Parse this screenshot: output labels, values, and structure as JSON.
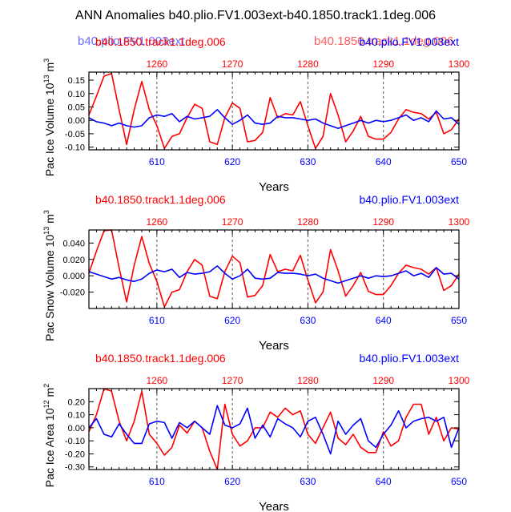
{
  "title": "ANN Anomalies b40.plio.FV1.003ext-b40.1850.track1.1deg.006",
  "overlay": {
    "blue_label": "b40.plio.FV1.003ext",
    "red_label": "b40.1850.track1.1deg.006"
  },
  "colors": {
    "red": "#ff0000",
    "blue": "#0000ff",
    "black": "#000000",
    "grid": "#555555"
  },
  "chart_data": [
    {
      "type": "line",
      "ylabel": "Pac Ice Volume 10",
      "ylabel_exp": "13",
      "ylabel_unit": " m",
      "ylabel_unit_exp": "3",
      "xlabel": "Years",
      "top_left_label": "b40.1850.track1.1deg.006",
      "top_right_label": "b40.plio.FV1.003ext",
      "xlim": [
        601,
        650
      ],
      "x_ticks": [
        610,
        620,
        630,
        640,
        650
      ],
      "x_tick_labels": [
        "610",
        "620",
        "630",
        "640",
        "650"
      ],
      "top_ticks": [
        1260,
        1270,
        1280,
        1290,
        1300
      ],
      "top_tick_labels": [
        "1260",
        "1270",
        "1280",
        "1290",
        "1300"
      ],
      "ylim": [
        -0.11,
        0.18
      ],
      "y_ticks": [
        0.15,
        0.1,
        0.05,
        0.0,
        -0.05,
        -0.1
      ],
      "y_tick_labels": [
        "0.15",
        "0.10",
        "0.05",
        "0.00",
        "-0.05",
        "-0.10"
      ],
      "vlines": [
        610,
        620,
        630,
        640
      ],
      "series": [
        {
          "color": "red",
          "x": [
            601,
            602,
            603,
            604,
            605,
            606,
            607,
            608,
            609,
            610,
            611,
            612,
            613,
            614,
            615,
            616,
            617,
            618,
            619,
            620,
            621,
            622,
            623,
            624,
            625,
            626,
            627,
            628,
            629,
            630,
            631,
            632,
            633,
            634,
            635,
            636,
            637,
            638,
            639,
            640,
            641,
            642,
            643,
            644,
            645,
            646,
            647,
            648,
            649,
            650
          ],
          "values": [
            0.02,
            0.09,
            0.165,
            0.175,
            0.04,
            -0.09,
            0.04,
            0.145,
            0.04,
            -0.02,
            -0.105,
            -0.06,
            -0.05,
            0.01,
            0.06,
            0.045,
            -0.08,
            -0.09,
            0.01,
            0.065,
            0.045,
            -0.08,
            -0.075,
            -0.045,
            0.085,
            0.01,
            0.025,
            0.02,
            0.07,
            -0.02,
            -0.105,
            -0.06,
            0.1,
            0.02,
            -0.08,
            -0.04,
            0.015,
            -0.06,
            -0.07,
            -0.07,
            -0.045,
            0.005,
            0.04,
            0.03,
            0.025,
            0.005,
            0.03,
            -0.05,
            -0.035,
            0.005
          ]
        },
        {
          "color": "blue",
          "x": [
            601,
            602,
            603,
            604,
            605,
            606,
            607,
            608,
            609,
            610,
            611,
            612,
            613,
            614,
            615,
            616,
            617,
            618,
            619,
            620,
            621,
            622,
            623,
            624,
            625,
            626,
            627,
            628,
            629,
            630,
            631,
            632,
            633,
            634,
            635,
            636,
            637,
            638,
            639,
            640,
            641,
            642,
            643,
            644,
            645,
            646,
            647,
            648,
            649,
            650
          ],
          "values": [
            0.01,
            -0.005,
            -0.01,
            -0.02,
            -0.01,
            -0.02,
            -0.025,
            -0.02,
            0.01,
            0.02,
            0.015,
            0.025,
            -0.005,
            0.015,
            0.005,
            0.01,
            0.015,
            0.04,
            0.01,
            -0.015,
            0.0,
            0.02,
            -0.01,
            -0.015,
            -0.01,
            0.015,
            0.01,
            0.01,
            0.005,
            0.0,
            0.005,
            -0.01,
            -0.02,
            -0.03,
            -0.02,
            -0.01,
            0.0,
            -0.01,
            0.0,
            -0.005,
            0.0,
            0.01,
            0.02,
            0.0,
            0.01,
            -0.005,
            0.035,
            0.005,
            0.01,
            -0.015
          ]
        }
      ]
    },
    {
      "type": "line",
      "ylabel": "Pac Snow Volume 10",
      "ylabel_exp": "13",
      "ylabel_unit": " m",
      "ylabel_unit_exp": "3",
      "xlabel": "Years",
      "top_left_label": "b40.1850.track1.1deg.006",
      "top_right_label": "b40.plio.FV1.003ext",
      "xlim": [
        601,
        650
      ],
      "x_ticks": [
        610,
        620,
        630,
        640,
        650
      ],
      "x_tick_labels": [
        "610",
        "620",
        "630",
        "640",
        "650"
      ],
      "top_ticks": [
        1260,
        1270,
        1280,
        1290,
        1300
      ],
      "top_tick_labels": [
        "1260",
        "1270",
        "1280",
        "1290",
        "1300"
      ],
      "ylim": [
        -0.04,
        0.056
      ],
      "y_ticks": [
        0.04,
        0.02,
        0.0,
        -0.02
      ],
      "y_tick_labels": [
        "0.040",
        "0.020",
        "0.000",
        "-0.020"
      ],
      "vlines": [
        610,
        620,
        630,
        640
      ],
      "series": [
        {
          "color": "red",
          "x": [
            601,
            602,
            603,
            604,
            605,
            606,
            607,
            608,
            609,
            610,
            611,
            612,
            613,
            614,
            615,
            616,
            617,
            618,
            619,
            620,
            621,
            622,
            623,
            624,
            625,
            626,
            627,
            628,
            629,
            630,
            631,
            632,
            633,
            634,
            635,
            636,
            637,
            638,
            639,
            640,
            641,
            642,
            643,
            644,
            645,
            646,
            647,
            648,
            649,
            650
          ],
          "values": [
            0.003,
            0.03,
            0.055,
            0.056,
            0.01,
            -0.032,
            0.013,
            0.048,
            0.015,
            -0.007,
            -0.038,
            -0.02,
            -0.017,
            0.005,
            0.02,
            0.013,
            -0.025,
            -0.028,
            0.005,
            0.024,
            0.016,
            -0.026,
            -0.024,
            -0.012,
            0.026,
            0.005,
            0.008,
            0.006,
            0.025,
            -0.005,
            -0.033,
            -0.02,
            0.032,
            0.006,
            -0.025,
            -0.012,
            0.004,
            -0.019,
            -0.023,
            -0.023,
            -0.012,
            0.003,
            0.013,
            0.01,
            0.008,
            0.002,
            0.01,
            -0.018,
            -0.012,
            0.002
          ]
        },
        {
          "color": "blue",
          "x": [
            601,
            602,
            603,
            604,
            605,
            606,
            607,
            608,
            609,
            610,
            611,
            612,
            613,
            614,
            615,
            616,
            617,
            618,
            619,
            620,
            621,
            622,
            623,
            624,
            625,
            626,
            627,
            628,
            629,
            630,
            631,
            632,
            633,
            634,
            635,
            636,
            637,
            638,
            639,
            640,
            641,
            642,
            643,
            644,
            645,
            646,
            647,
            648,
            649,
            650
          ],
          "values": [
            0.005,
            0.002,
            -0.001,
            -0.004,
            -0.002,
            -0.005,
            -0.007,
            -0.004,
            0.003,
            0.007,
            0.005,
            0.008,
            -0.002,
            0.004,
            0.002,
            0.003,
            0.005,
            0.012,
            0.003,
            -0.004,
            0.0,
            0.008,
            -0.003,
            -0.004,
            -0.003,
            0.004,
            0.003,
            0.003,
            0.002,
            0.0,
            0.002,
            -0.003,
            -0.006,
            -0.009,
            -0.006,
            -0.003,
            0.0,
            -0.003,
            0.0,
            -0.001,
            0.0,
            0.003,
            0.006,
            0.0,
            0.003,
            -0.002,
            0.01,
            0.002,
            0.003,
            -0.004
          ]
        }
      ]
    },
    {
      "type": "line",
      "ylabel": "Pac Ice Area 10",
      "ylabel_exp": "12",
      "ylabel_unit": " m",
      "ylabel_unit_exp": "2",
      "xlabel": "Years",
      "top_left_label": "b40.1850.track1.1deg.006",
      "top_right_label": "b40.plio.FV1.003ext",
      "xlim": [
        601,
        650
      ],
      "x_ticks": [
        610,
        620,
        630,
        640,
        650
      ],
      "x_tick_labels": [
        "610",
        "620",
        "630",
        "640",
        "650"
      ],
      "top_ticks": [
        1260,
        1270,
        1280,
        1290,
        1300
      ],
      "top_tick_labels": [
        "1260",
        "1270",
        "1280",
        "1290",
        "1300"
      ],
      "ylim": [
        -0.32,
        0.3
      ],
      "y_ticks": [
        0.2,
        0.1,
        0.0,
        -0.1,
        -0.2,
        -0.3
      ],
      "y_tick_labels": [
        "0.20",
        "0.10",
        "0.00",
        "-0.10",
        "-0.20",
        "-0.30"
      ],
      "vlines": [
        610,
        620,
        630,
        640
      ],
      "series": [
        {
          "color": "red",
          "x": [
            601,
            602,
            603,
            604,
            605,
            606,
            607,
            608,
            609,
            610,
            611,
            612,
            613,
            614,
            615,
            616,
            617,
            618,
            619,
            620,
            621,
            622,
            623,
            624,
            625,
            626,
            627,
            628,
            629,
            630,
            631,
            632,
            633,
            634,
            635,
            636,
            637,
            638,
            639,
            640,
            641,
            642,
            643,
            644,
            645,
            646,
            647,
            648,
            649,
            650
          ],
          "values": [
            -0.03,
            0.1,
            0.3,
            0.28,
            0.05,
            -0.1,
            0.05,
            0.28,
            -0.05,
            -0.12,
            -0.21,
            -0.15,
            0.02,
            -0.04,
            0.05,
            0.0,
            -0.18,
            -0.32,
            0.18,
            -0.05,
            -0.14,
            -0.1,
            0.0,
            0.0,
            0.12,
            0.08,
            0.15,
            0.1,
            0.13,
            -0.05,
            -0.12,
            0.0,
            0.12,
            -0.08,
            -0.13,
            -0.05,
            -0.15,
            -0.19,
            -0.19,
            -0.03,
            -0.14,
            -0.1,
            0.08,
            0.18,
            0.18,
            -0.05,
            0.08,
            -0.1,
            0.0,
            -0.01
          ]
        },
        {
          "color": "blue",
          "x": [
            601,
            602,
            603,
            604,
            605,
            606,
            607,
            608,
            609,
            610,
            611,
            612,
            613,
            614,
            615,
            616,
            617,
            618,
            619,
            620,
            621,
            622,
            623,
            624,
            625,
            626,
            627,
            628,
            629,
            630,
            631,
            632,
            633,
            634,
            635,
            636,
            637,
            638,
            639,
            640,
            641,
            642,
            643,
            644,
            645,
            646,
            647,
            648,
            649,
            650
          ],
          "values": [
            0.0,
            0.07,
            -0.05,
            -0.07,
            0.03,
            -0.05,
            -0.12,
            -0.12,
            0.03,
            0.05,
            0.04,
            -0.08,
            0.04,
            0.0,
            0.05,
            0.0,
            -0.05,
            0.17,
            0.02,
            0.0,
            0.03,
            0.15,
            -0.08,
            0.02,
            -0.07,
            0.07,
            0.03,
            0.0,
            -0.07,
            0.05,
            0.08,
            -0.05,
            -0.2,
            0.05,
            -0.05,
            0.02,
            0.07,
            -0.1,
            -0.15,
            -0.05,
            0.02,
            0.13,
            0.0,
            0.05,
            0.07,
            0.08,
            0.05,
            0.08,
            -0.15,
            0.0
          ]
        }
      ]
    }
  ]
}
